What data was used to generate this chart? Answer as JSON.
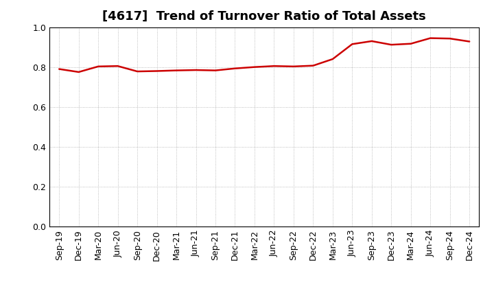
{
  "title": "[4617]  Trend of Turnover Ratio of Total Assets",
  "line_color": "#cc0000",
  "background_color": "#ffffff",
  "grid_color": "#aaaaaa",
  "ylim": [
    0.0,
    1.0
  ],
  "yticks": [
    0.0,
    0.2,
    0.4,
    0.6,
    0.8,
    1.0
  ],
  "labels": [
    "Sep-19",
    "Dec-19",
    "Mar-20",
    "Jun-20",
    "Sep-20",
    "Dec-20",
    "Mar-21",
    "Jun-21",
    "Sep-21",
    "Dec-21",
    "Mar-22",
    "Jun-22",
    "Sep-22",
    "Dec-22",
    "Mar-23",
    "Jun-23",
    "Sep-23",
    "Dec-23",
    "Mar-24",
    "Jun-24",
    "Sep-24",
    "Dec-24"
  ],
  "values": [
    0.79,
    0.775,
    0.803,
    0.805,
    0.778,
    0.78,
    0.783,
    0.785,
    0.783,
    0.793,
    0.8,
    0.805,
    0.803,
    0.807,
    0.84,
    0.915,
    0.93,
    0.912,
    0.917,
    0.945,
    0.943,
    0.928
  ],
  "title_fontsize": 13,
  "tick_fontsize": 9,
  "line_width": 1.8
}
